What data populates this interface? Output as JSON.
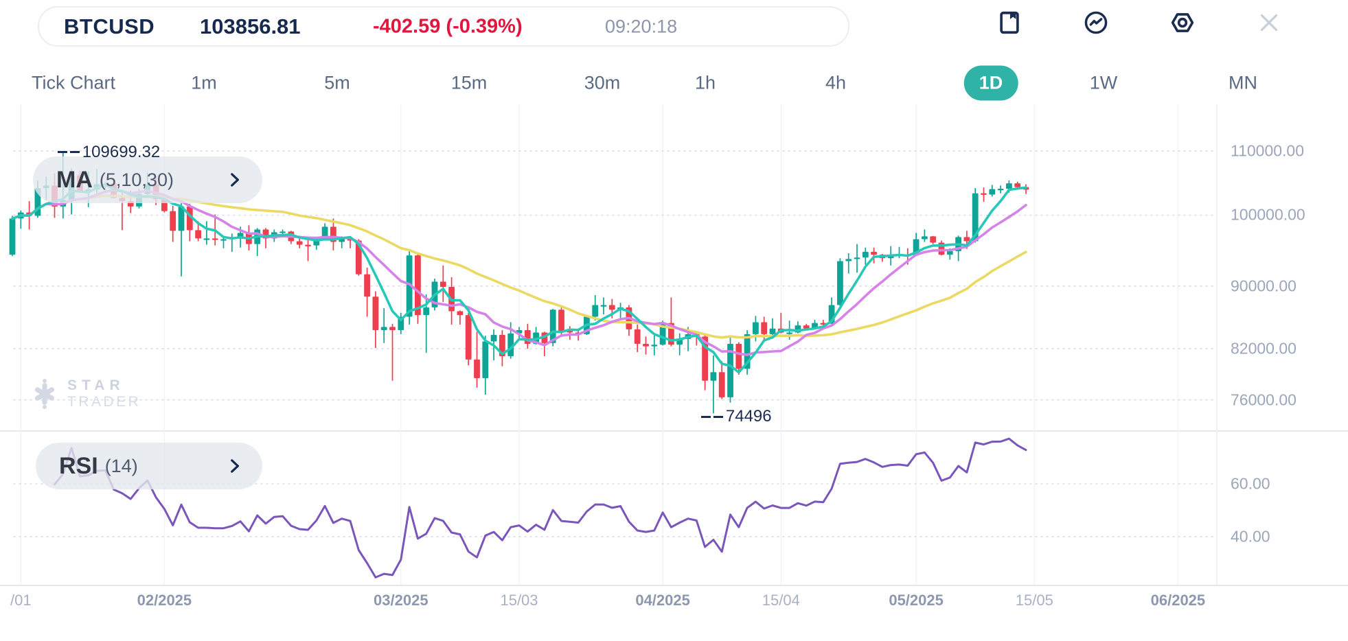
{
  "header": {
    "symbol": "BTCUSD",
    "price": "103856.81",
    "change": "-402.59 (-0.39%)",
    "time": "09:20:18"
  },
  "toolbar": {
    "icons": [
      "bookmark",
      "indicator",
      "settings",
      "close"
    ]
  },
  "timeframes": {
    "items": [
      {
        "label": "Tick Chart",
        "active": false
      },
      {
        "label": "1m",
        "active": false
      },
      {
        "label": "5m",
        "active": false
      },
      {
        "label": "15m",
        "active": false
      },
      {
        "label": "30m",
        "active": false
      },
      {
        "label": "1h",
        "active": false
      },
      {
        "label": "4h",
        "active": false
      },
      {
        "label": "1D",
        "active": true
      },
      {
        "label": "1W",
        "active": false
      },
      {
        "label": "MN",
        "active": false
      }
    ]
  },
  "indicators": {
    "ma": {
      "name": "MA",
      "params": "(5,10,30)"
    },
    "rsi": {
      "name": "RSI",
      "params": "(14)"
    }
  },
  "annotations": {
    "high": "109699.32",
    "low": "74496"
  },
  "watermark": {
    "line1": "STAR",
    "line2": "TRADER"
  },
  "colors": {
    "bull": "#0fa596",
    "bear": "#ee3f4f",
    "ma5": "#27c8b8",
    "ma10": "#d583e8",
    "ma30": "#ecd964",
    "rsi_line": "#7a55ba",
    "accent": "#2fb3a6",
    "navy": "#1b2c51",
    "down_red": "#e0163e",
    "grid_dotted": "#d7dce6",
    "grid_vertical": "#f1f3f8",
    "axis_text": "#9ba6bb"
  },
  "chart_data": {
    "type": "candlestick",
    "scale": "log",
    "title": "BTCUSD 1D with MA(5,10,30) and RSI(14)",
    "ma_periods": [
      5,
      10,
      30
    ],
    "rsi_period": 14,
    "price_ticks": [
      110000,
      100000,
      90000,
      82000,
      76000
    ],
    "rsi_ticks": [
      60,
      40
    ],
    "high_marker": {
      "index": 6,
      "value": 109699.32
    },
    "low_marker": {
      "index": 83,
      "value": 74496
    },
    "x_labels": [
      {
        "label": "/01",
        "day": 1,
        "bold": false
      },
      {
        "label": "02/2025",
        "day": 18,
        "bold": true
      },
      {
        "label": "03/2025",
        "day": 46,
        "bold": true
      },
      {
        "label": "15/03",
        "day": 60,
        "bold": false
      },
      {
        "label": "04/2025",
        "day": 77,
        "bold": true
      },
      {
        "label": "15/04",
        "day": 91,
        "bold": false
      },
      {
        "label": "05/2025",
        "day": 107,
        "bold": true
      },
      {
        "label": "15/05",
        "day": 121,
        "bold": false
      },
      {
        "label": "06/2025",
        "day": 138,
        "bold": true
      }
    ],
    "candles_ohlc": [
      [
        94300,
        99900,
        94100,
        99500
      ],
      [
        99500,
        100700,
        98000,
        100400
      ],
      [
        100400,
        102100,
        97900,
        99900
      ],
      [
        99900,
        105300,
        99600,
        104100
      ],
      [
        104100,
        105900,
        102300,
        104500
      ],
      [
        104500,
        106400,
        99600,
        101300
      ],
      [
        101300,
        109699.32,
        99500,
        102300
      ],
      [
        102300,
        107200,
        100100,
        106100
      ],
      [
        106100,
        106800,
        103400,
        103700
      ],
      [
        103700,
        106700,
        101200,
        103900
      ],
      [
        103900,
        107100,
        102700,
        104700
      ],
      [
        104700,
        105100,
        104000,
        104800
      ],
      [
        104800,
        105500,
        102500,
        102600
      ],
      [
        102600,
        103400,
        97800,
        102100
      ],
      [
        102100,
        103700,
        100300,
        101300
      ],
      [
        101300,
        104000,
        101000,
        103200
      ],
      [
        103200,
        106500,
        103000,
        104700
      ],
      [
        104700,
        106000,
        101500,
        102400
      ],
      [
        102400,
        102800,
        100400,
        100600
      ],
      [
        100600,
        101400,
        96100,
        97700
      ],
      [
        97700,
        102500,
        91300,
        101300
      ],
      [
        101300,
        101700,
        96200,
        97800
      ],
      [
        97800,
        99100,
        96200,
        96600
      ],
      [
        96600,
        99100,
        95700,
        96600
      ],
      [
        96600,
        100100,
        95600,
        96500
      ],
      [
        96500,
        96900,
        95200,
        96500
      ],
      [
        96500,
        97300,
        94700,
        96800
      ],
      [
        96800,
        98300,
        95300,
        97400
      ],
      [
        97400,
        98500,
        94900,
        95800
      ],
      [
        95800,
        98100,
        94100,
        97900
      ],
      [
        97900,
        98100,
        95200,
        96600
      ],
      [
        96600,
        97900,
        96100,
        97500
      ],
      [
        97500,
        97900,
        97000,
        97600
      ],
      [
        97600,
        97700,
        95800,
        96200
      ],
      [
        96200,
        97000,
        95200,
        95700
      ],
      [
        95700,
        96700,
        93400,
        95600
      ],
      [
        95600,
        96800,
        95000,
        96600
      ],
      [
        96600,
        98800,
        96400,
        98300
      ],
      [
        98300,
        99500,
        94900,
        96100
      ],
      [
        96100,
        96900,
        95200,
        96600
      ],
      [
        96600,
        96700,
        95200,
        96300
      ],
      [
        96300,
        96500,
        91400,
        91600
      ],
      [
        91600,
        92500,
        86000,
        88600
      ],
      [
        88600,
        89300,
        82100,
        84300
      ],
      [
        84300,
        87100,
        82700,
        84700
      ],
      [
        84700,
        85100,
        78200,
        84300
      ],
      [
        84300,
        86500,
        83800,
        86000
      ],
      [
        86000,
        95000,
        85000,
        94200
      ],
      [
        94200,
        94400,
        85100,
        86200
      ],
      [
        86200,
        88900,
        81500,
        87200
      ],
      [
        87200,
        91000,
        86800,
        90600
      ],
      [
        90600,
        92800,
        87900,
        89900
      ],
      [
        89900,
        91200,
        85000,
        86700
      ],
      [
        86700,
        86800,
        85000,
        86200
      ],
      [
        86200,
        86500,
        80000,
        80700
      ],
      [
        80700,
        84100,
        77400,
        78500
      ],
      [
        78500,
        83600,
        76600,
        82900
      ],
      [
        82900,
        84400,
        80600,
        83700
      ],
      [
        83700,
        84300,
        79900,
        81100
      ],
      [
        81100,
        85300,
        80800,
        83900
      ],
      [
        83900,
        84700,
        83200,
        84300
      ],
      [
        84300,
        85100,
        82000,
        82600
      ],
      [
        82600,
        84700,
        82500,
        84000
      ],
      [
        84000,
        84100,
        81100,
        82700
      ],
      [
        82700,
        87000,
        82300,
        86900
      ],
      [
        86900,
        87500,
        83600,
        84200
      ],
      [
        84200,
        84800,
        83100,
        84000
      ],
      [
        84000,
        84500,
        83000,
        83800
      ],
      [
        83800,
        86100,
        83700,
        86000
      ],
      [
        86000,
        88800,
        85500,
        87500
      ],
      [
        87500,
        88500,
        86300,
        87500
      ],
      [
        87500,
        88300,
        85800,
        86900
      ],
      [
        86900,
        87800,
        85800,
        87200
      ],
      [
        87200,
        87500,
        83600,
        84400
      ],
      [
        84400,
        85000,
        81600,
        82600
      ],
      [
        82600,
        83500,
        81300,
        82300
      ],
      [
        82300,
        83900,
        81200,
        82500
      ],
      [
        82500,
        85500,
        82400,
        85200
      ],
      [
        85200,
        88500,
        82300,
        82500
      ],
      [
        82500,
        83900,
        81200,
        83200
      ],
      [
        83200,
        84700,
        81700,
        83800
      ],
      [
        83800,
        84200,
        82400,
        83500
      ],
      [
        83500,
        83800,
        77100,
        78200
      ],
      [
        78200,
        81200,
        74496,
        79200
      ],
      [
        79200,
        80500,
        76100,
        76300
      ],
      [
        76300,
        83600,
        75700,
        82600
      ],
      [
        82600,
        82800,
        78900,
        79600
      ],
      [
        79600,
        84300,
        78900,
        83800
      ],
      [
        83800,
        86100,
        82900,
        85300
      ],
      [
        85300,
        86000,
        83000,
        83800
      ],
      [
        83800,
        85800,
        83700,
        84500
      ],
      [
        84500,
        86500,
        83900,
        84000
      ],
      [
        84000,
        85500,
        83100,
        84000
      ],
      [
        84000,
        85400,
        83900,
        84900
      ],
      [
        84900,
        85100,
        84300,
        84500
      ],
      [
        84500,
        85600,
        84400,
        85200
      ],
      [
        85200,
        85600,
        84500,
        85100
      ],
      [
        85100,
        88500,
        85000,
        87500
      ],
      [
        87500,
        93800,
        87100,
        93400
      ],
      [
        93400,
        94500,
        91700,
        93700
      ],
      [
        93700,
        95800,
        91800,
        93900
      ],
      [
        93900,
        95300,
        92900,
        94700
      ],
      [
        94700,
        95300,
        93100,
        94300
      ],
      [
        94300,
        94400,
        93300,
        93800
      ],
      [
        93800,
        95500,
        92800,
        94200
      ],
      [
        94200,
        95400,
        93800,
        94300
      ],
      [
        94300,
        95200,
        92900,
        94200
      ],
      [
        94200,
        97400,
        94100,
        96500
      ],
      [
        96500,
        97900,
        96100,
        96900
      ],
      [
        96900,
        96950,
        95800,
        96000
      ],
      [
        96000,
        96300,
        94200,
        94300
      ],
      [
        94300,
        95200,
        93600,
        94800
      ],
      [
        94800,
        97000,
        93400,
        96800
      ],
      [
        96800,
        97700,
        95100,
        96200
      ],
      [
        96200,
        104100,
        96000,
        103300
      ],
      [
        103300,
        104200,
        102000,
        103100
      ],
      [
        103100,
        104600,
        102800,
        103950
      ],
      [
        103950,
        104500,
        103300,
        104000
      ],
      [
        104000,
        105300,
        103400,
        104840
      ],
      [
        104840,
        105100,
        103900,
        104259.4
      ],
      [
        104259.4,
        104700,
        103200,
        103856.81
      ]
    ]
  }
}
